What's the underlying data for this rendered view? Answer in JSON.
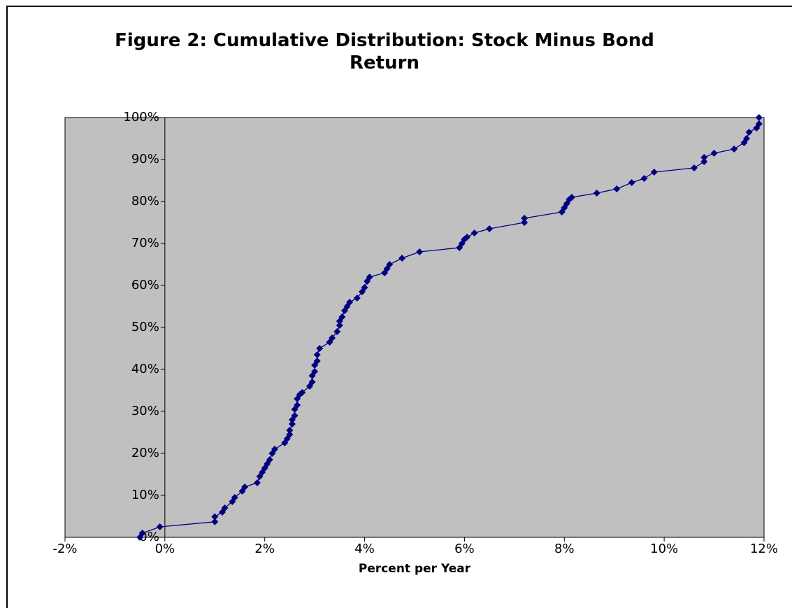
{
  "chart_data": {
    "type": "scatter-line",
    "title": "Figure 2: Cumulative Distribution: Stock Minus Bond Return",
    "x_label": "Percent per Year",
    "color": "#000080",
    "plot_background": "#c0c0c0",
    "xlim": [
      -2,
      12
    ],
    "ylim": [
      0,
      100
    ],
    "xticks": [
      {
        "value": -2,
        "label": "-2%"
      },
      {
        "value": 0,
        "label": "0%"
      },
      {
        "value": 2,
        "label": "2%"
      },
      {
        "value": 4,
        "label": "4%"
      },
      {
        "value": 6,
        "label": "6%"
      },
      {
        "value": 8,
        "label": "8%"
      },
      {
        "value": 10,
        "label": "10%"
      },
      {
        "value": 12,
        "label": "12%"
      }
    ],
    "yticks": [
      {
        "value": 0,
        "label": "0%"
      },
      {
        "value": 10,
        "label": "10%"
      },
      {
        "value": 20,
        "label": "20%"
      },
      {
        "value": 30,
        "label": "30%"
      },
      {
        "value": 40,
        "label": "40%"
      },
      {
        "value": 50,
        "label": "50%"
      },
      {
        "value": 60,
        "label": "60%"
      },
      {
        "value": 70,
        "label": "70%"
      },
      {
        "value": 80,
        "label": "80%"
      },
      {
        "value": 90,
        "label": "90%"
      },
      {
        "value": 100,
        "label": "100%"
      }
    ],
    "x": [
      -0.5,
      -0.45,
      -0.1,
      1.0,
      1.0,
      1.15,
      1.2,
      1.35,
      1.4,
      1.55,
      1.6,
      1.85,
      1.9,
      1.95,
      2.0,
      2.05,
      2.1,
      2.15,
      2.2,
      2.4,
      2.45,
      2.5,
      2.5,
      2.55,
      2.55,
      2.6,
      2.6,
      2.65,
      2.65,
      2.7,
      2.75,
      2.9,
      2.95,
      2.95,
      3.0,
      3.0,
      3.05,
      3.05,
      3.1,
      3.3,
      3.35,
      3.45,
      3.5,
      3.5,
      3.55,
      3.6,
      3.65,
      3.7,
      3.85,
      3.95,
      4.0,
      4.05,
      4.1,
      4.4,
      4.45,
      4.5,
      4.75,
      5.1,
      5.9,
      5.95,
      6.0,
      6.05,
      6.2,
      6.5,
      7.2,
      7.2,
      7.95,
      8.0,
      8.05,
      8.1,
      8.15,
      8.65,
      9.05,
      9.35,
      9.6,
      9.8,
      10.6,
      10.8,
      10.8,
      11.0,
      11.4,
      11.6,
      11.65,
      11.7,
      11.85,
      11.9,
      11.9
    ],
    "values": [
      0,
      1,
      2.5,
      3.7,
      4.9,
      6,
      7,
      8.5,
      9.5,
      11,
      12,
      13,
      14.5,
      15.5,
      16.5,
      17.5,
      18.5,
      20,
      21,
      22.5,
      23.5,
      24.5,
      25.5,
      27,
      28,
      29,
      30.5,
      31.5,
      33,
      34,
      34.5,
      36,
      37,
      38.5,
      39.5,
      41,
      42,
      43.5,
      45,
      46.5,
      47.5,
      49,
      50.5,
      51.5,
      52.5,
      54,
      55,
      56,
      57,
      58.5,
      59.5,
      61,
      62,
      63,
      64,
      65,
      66.5,
      68,
      69,
      70,
      71,
      71.5,
      72.5,
      73.5,
      75,
      76,
      77.5,
      78.5,
      79.5,
      80.5,
      81,
      82,
      83,
      84.5,
      85.5,
      87,
      88,
      89.5,
      90.5,
      91.5,
      92.5,
      94,
      95,
      96.5,
      97.5,
      98.5,
      100
    ]
  }
}
